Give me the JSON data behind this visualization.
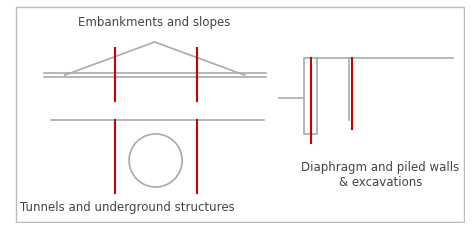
{
  "background_color": "#ffffff",
  "border_color": "#bbbbbb",
  "gray_color": "#aaaaaa",
  "red_color": "#cc0000",
  "text_color": "#444444",
  "title1": "Embankments and slopes",
  "title2": "Tunnels and underground structures",
  "title3": "Diaphragm and piled walls\n& excavations",
  "fig_width": 4.74,
  "fig_height": 2.29,
  "dpi": 100
}
